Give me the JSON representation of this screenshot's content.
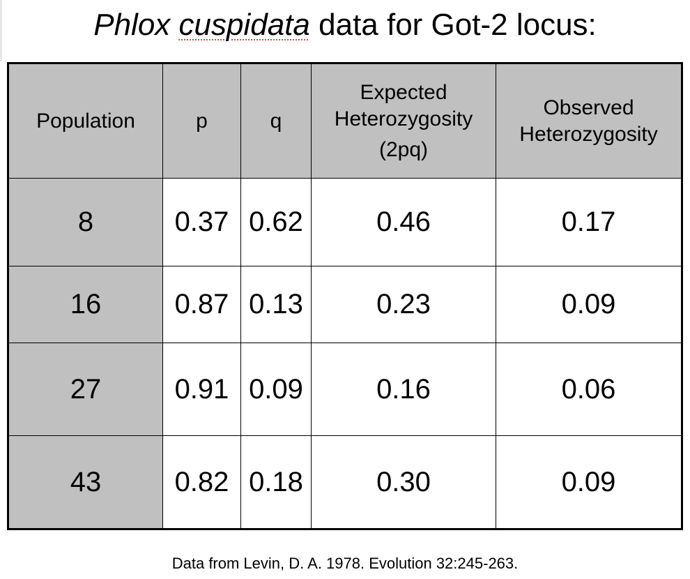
{
  "title": {
    "genus": "Phlox",
    "species": "cuspidata",
    "rest": "data for Got-2 locus:"
  },
  "table": {
    "headers": {
      "population": "Population",
      "p": "p",
      "q": "q",
      "expected_line1": "Expected",
      "expected_line2": "Heterozygosity",
      "expected_line3": "(2pq)",
      "observed_line1": "Observed",
      "observed_line2": "Heterozygosity"
    },
    "rows": [
      {
        "population": "8",
        "p": "0.37",
        "q": "0.62",
        "expected": "0.46",
        "observed": "0.17"
      },
      {
        "population": "16",
        "p": "0.87",
        "q": "0.13",
        "expected": "0.23",
        "observed": "0.09"
      },
      {
        "population": "27",
        "p": "0.91",
        "q": "0.09",
        "expected": "0.16",
        "observed": "0.06"
      },
      {
        "population": "43",
        "p": "0.82",
        "q": "0.18",
        "expected": "0.30",
        "observed": "0.09"
      }
    ]
  },
  "footnote": "Data from Levin, D. A. 1978. Evolution 32:245-263."
}
